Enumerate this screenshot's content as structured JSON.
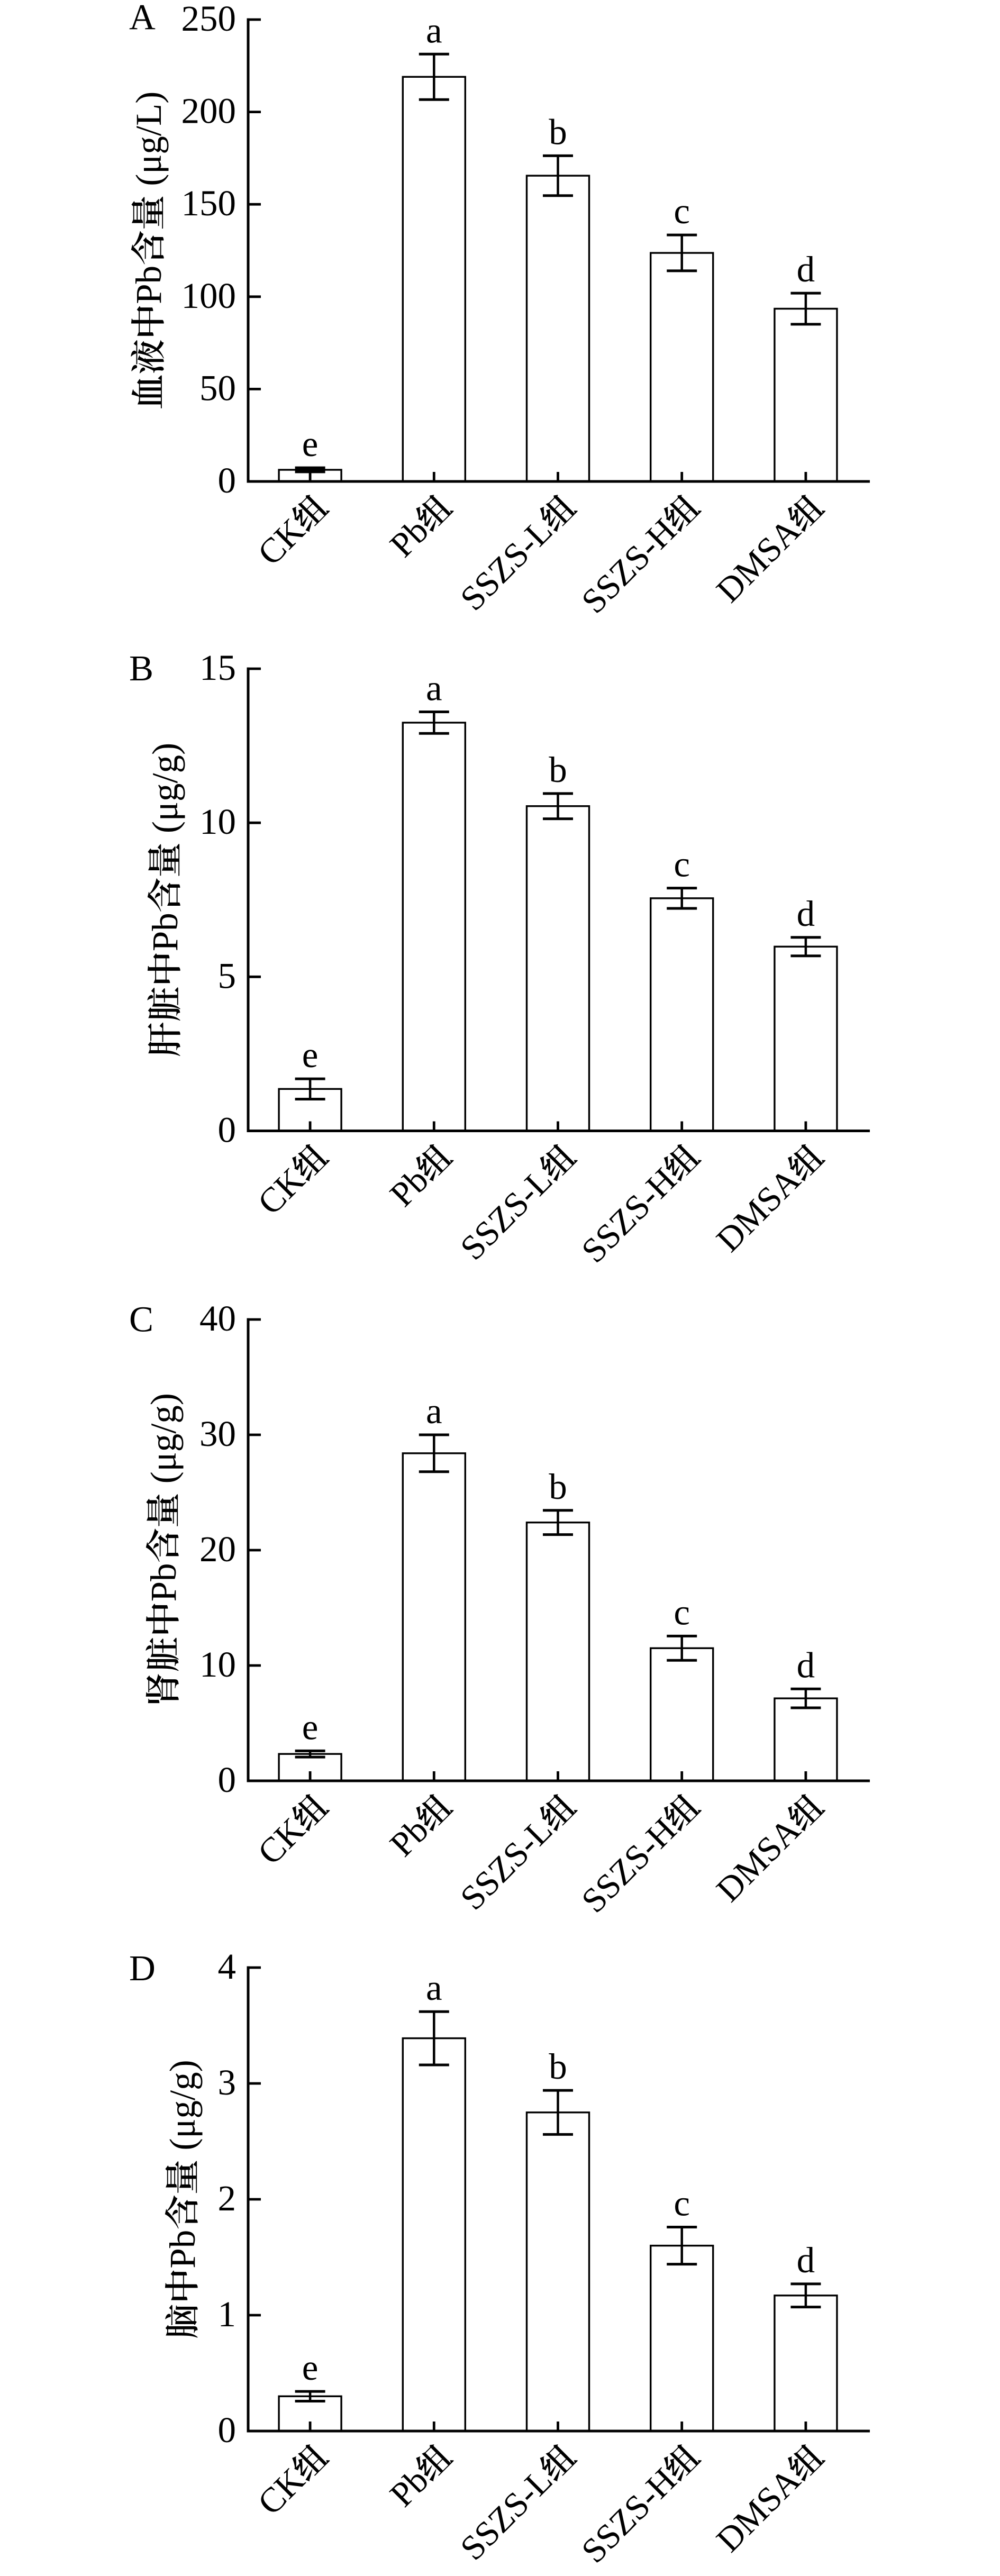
{
  "figure": {
    "background_color": "#ffffff",
    "ink_color": "#000000"
  },
  "chart_data": [
    {
      "type": "bar",
      "panel_letter": "A",
      "ylabel": "血液中Pb含量 (μg/L)",
      "categories": [
        "CK组",
        "Pb组",
        "SSZS-L组",
        "SSZS-H组",
        "DMSA组"
      ],
      "values": [
        6.3,
        219.0,
        165.5,
        123.7,
        93.5
      ],
      "errors": [
        1.1,
        12.3,
        10.8,
        9.7,
        8.4
      ],
      "sig_letters": [
        "e",
        "a",
        "b",
        "c",
        "d"
      ],
      "ylim": [
        0,
        250
      ],
      "ytick_step": 50,
      "ytick_labels": [
        "0",
        "50",
        "100",
        "150",
        "200",
        "250"
      ],
      "xlabel": "",
      "grid": false,
      "legend": null,
      "bar_fill": "#ffffff",
      "bar_edge": "#000000"
    },
    {
      "type": "bar",
      "panel_letter": "B",
      "ylabel": "肝脏中Pb含量 (μg/g)",
      "categories": [
        "CK组",
        "Pb组",
        "SSZS-L组",
        "SSZS-H组",
        "DMSA组"
      ],
      "values": [
        1.36,
        13.25,
        10.54,
        7.55,
        5.98
      ],
      "errors": [
        0.33,
        0.35,
        0.41,
        0.33,
        0.3
      ],
      "sig_letters": [
        "e",
        "a",
        "b",
        "c",
        "d"
      ],
      "ylim": [
        0,
        15
      ],
      "ytick_step": 5,
      "ytick_labels": [
        "0",
        "5",
        "10",
        "15"
      ],
      "xlabel": "",
      "grid": false,
      "legend": null,
      "bar_fill": "#ffffff",
      "bar_edge": "#000000"
    },
    {
      "type": "bar",
      "panel_letter": "C",
      "ylabel": "肾脏中Pb含量 (μg/g)",
      "categories": [
        "CK组",
        "Pb组",
        "SSZS-L组",
        "SSZS-H组",
        "DMSA组"
      ],
      "values": [
        2.33,
        28.4,
        22.4,
        11.5,
        7.15
      ],
      "errors": [
        0.27,
        1.6,
        1.05,
        1.05,
        0.82
      ],
      "sig_letters": [
        "e",
        "a",
        "b",
        "c",
        "d"
      ],
      "ylim": [
        0,
        40
      ],
      "ytick_step": 10,
      "ytick_labels": [
        "0",
        "10",
        "20",
        "30",
        "40"
      ],
      "xlabel": "",
      "grid": false,
      "legend": null,
      "bar_fill": "#ffffff",
      "bar_edge": "#000000"
    },
    {
      "type": "bar",
      "panel_letter": "D",
      "ylabel": "脑中Pb含量 (μg/g)",
      "categories": [
        "CK组",
        "Pb组",
        "SSZS-L组",
        "SSZS-H组",
        "DMSA组"
      ],
      "values": [
        0.3,
        3.39,
        2.75,
        1.6,
        1.17
      ],
      "errors": [
        0.042,
        0.23,
        0.19,
        0.16,
        0.1
      ],
      "sig_letters": [
        "e",
        "a",
        "b",
        "c",
        "d"
      ],
      "ylim": [
        0,
        4
      ],
      "ytick_step": 1,
      "ytick_labels": [
        "0",
        "1",
        "2",
        "3",
        "4"
      ],
      "xlabel": "",
      "grid": false,
      "legend": null,
      "bar_fill": "#ffffff",
      "bar_edge": "#000000"
    }
  ]
}
